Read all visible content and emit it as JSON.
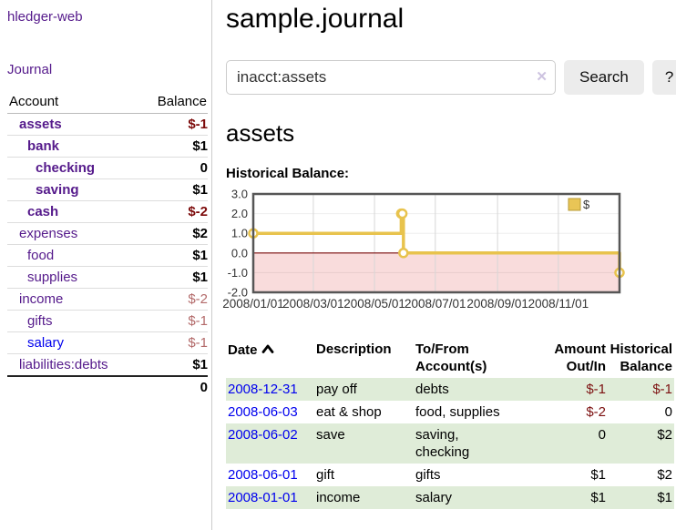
{
  "sidebar": {
    "brand": "hledger-web",
    "journal_link": "Journal",
    "accounts": {
      "header_account": "Account",
      "header_balance": "Balance",
      "rows": [
        {
          "name": "assets",
          "balance": "$-1"
        },
        {
          "name": "bank",
          "balance": "$1"
        },
        {
          "name": "checking",
          "balance": "0"
        },
        {
          "name": "saving",
          "balance": "$1"
        },
        {
          "name": "cash",
          "balance": "$-2"
        },
        {
          "name": "expenses",
          "balance": "$2"
        },
        {
          "name": "food",
          "balance": "$1"
        },
        {
          "name": "supplies",
          "balance": "$1"
        },
        {
          "name": "income",
          "balance": "$-2"
        },
        {
          "name": "gifts",
          "balance": "$-1"
        },
        {
          "name": "salary",
          "balance": "$-1"
        },
        {
          "name": "liabilities:debts",
          "balance": "$1"
        }
      ],
      "total": "0"
    }
  },
  "main": {
    "title": "sample.journal",
    "search": {
      "value": "inacct:assets",
      "clear_icon": "✕",
      "search_button": "Search",
      "help_button": "?"
    },
    "account_heading": "assets",
    "chart_label": "Historical Balance:"
  },
  "chart_data": {
    "type": "line",
    "style": "step-after",
    "title": "Historical Balance",
    "legend": [
      {
        "label": "$",
        "color": "#e9c556"
      }
    ],
    "ylim": [
      -2.0,
      3.0
    ],
    "yticks": [
      "3.0",
      "2.0",
      "1.0",
      "0.0",
      "-1.0",
      "-2.0"
    ],
    "ytick_values": [
      3,
      2,
      1,
      0,
      -1,
      -2
    ],
    "xticks": [
      {
        "label": "2008/01/01",
        "pos": 0.0
      },
      {
        "label": "2008/03/01",
        "pos": 0.164
      },
      {
        "label": "2008/05/01",
        "pos": 0.331
      },
      {
        "label": "2008/07/01",
        "pos": 0.497
      },
      {
        "label": "2008/09/01",
        "pos": 0.667
      },
      {
        "label": "2008/11/01",
        "pos": 0.833
      }
    ],
    "points": [
      {
        "date": "2008-01-01",
        "value": 1,
        "pos": 0.0
      },
      {
        "date": "2008-06-01",
        "value": 2,
        "pos": 0.404
      },
      {
        "date": "2008-06-02",
        "value": 2,
        "pos": 0.407
      },
      {
        "date": "2008-06-03",
        "value": 0,
        "pos": 0.41
      },
      {
        "date": "2008-12-31",
        "value": -1,
        "pos": 1.0
      }
    ],
    "colors": {
      "line": "#e8c34d",
      "marker_fill": "#ffffff",
      "negative_region": "#f9dcdc",
      "zero_line": "#7b0b0b",
      "grid": "#d7d7d7",
      "border": "#565656",
      "tick_text": "#333333"
    }
  },
  "register_table": {
    "headers": {
      "date": "Date",
      "description": "Description",
      "accounts": "To/From\nAccount(s)",
      "amount": "Amount\nOut/In",
      "balance": "Historical\nBalance"
    },
    "rows": [
      {
        "date": "2008-12-31",
        "description": "pay off",
        "accounts": "debts",
        "amount": "$-1",
        "balance": "$-1"
      },
      {
        "date": "2008-06-03",
        "description": "eat & shop",
        "accounts": "food, supplies",
        "amount": "$-2",
        "balance": "0"
      },
      {
        "date": "2008-06-02",
        "description": "save",
        "accounts": "saving,\nchecking",
        "amount": "0",
        "balance": "$2"
      },
      {
        "date": "2008-06-01",
        "description": "gift",
        "accounts": "gifts",
        "amount": "$1",
        "balance": "$2"
      },
      {
        "date": "2008-01-01",
        "description": "income",
        "accounts": "salary",
        "amount": "$1",
        "balance": "$1"
      }
    ]
  },
  "colors": {
    "link_purple": "#551a8b",
    "link_blue": "#0000ee",
    "negative_strong": "#7c0a0a",
    "negative_soft": "#b36a6a",
    "row_green": "#dfecd8",
    "button_gray": "#ececec"
  }
}
